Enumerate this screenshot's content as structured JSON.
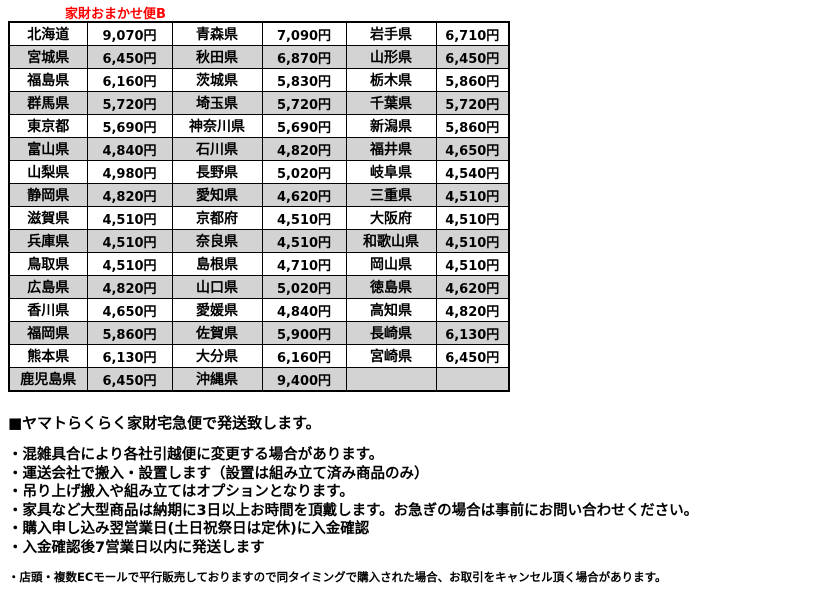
{
  "title": "家財おまかせ便B",
  "colors": {
    "accent_red": "#ff0000",
    "row_shade": "#d3d3d3",
    "border": "#000000"
  },
  "table": {
    "rows": [
      {
        "shaded": false,
        "cells": [
          "北海道",
          "9,070円",
          "青森県",
          "7,090円",
          "岩手県",
          "6,710円"
        ]
      },
      {
        "shaded": true,
        "cells": [
          "宮城県",
          "6,450円",
          "秋田県",
          "6,870円",
          "山形県",
          "6,450円"
        ]
      },
      {
        "shaded": false,
        "cells": [
          "福島県",
          "6,160円",
          "茨城県",
          "5,830円",
          "栃木県",
          "5,860円"
        ]
      },
      {
        "shaded": true,
        "cells": [
          "群馬県",
          "5,720円",
          "埼玉県",
          "5,720円",
          "千葉県",
          "5,720円"
        ]
      },
      {
        "shaded": false,
        "cells": [
          "東京都",
          "5,690円",
          "神奈川県",
          "5,690円",
          "新潟県",
          "5,860円"
        ]
      },
      {
        "shaded": true,
        "cells": [
          "富山県",
          "4,840円",
          "石川県",
          "4,820円",
          "福井県",
          "4,650円"
        ]
      },
      {
        "shaded": false,
        "cells": [
          "山梨県",
          "4,980円",
          "長野県",
          "5,020円",
          "岐阜県",
          "4,540円"
        ]
      },
      {
        "shaded": true,
        "cells": [
          "静岡県",
          "4,820円",
          "愛知県",
          "4,620円",
          "三重県",
          "4,510円"
        ]
      },
      {
        "shaded": false,
        "cells": [
          "滋賀県",
          "4,510円",
          "京都府",
          "4,510円",
          "大阪府",
          "4,510円"
        ]
      },
      {
        "shaded": true,
        "cells": [
          "兵庫県",
          "4,510円",
          "奈良県",
          "4,510円",
          "和歌山県",
          "4,510円"
        ]
      },
      {
        "shaded": false,
        "cells": [
          "鳥取県",
          "4,510円",
          "島根県",
          "4,710円",
          "岡山県",
          "4,510円"
        ]
      },
      {
        "shaded": true,
        "cells": [
          "広島県",
          "4,820円",
          "山口県",
          "5,020円",
          "徳島県",
          "4,620円"
        ]
      },
      {
        "shaded": false,
        "cells": [
          "香川県",
          "4,650円",
          "愛媛県",
          "4,840円",
          "高知県",
          "4,820円"
        ]
      },
      {
        "shaded": true,
        "cells": [
          "福岡県",
          "5,860円",
          "佐賀県",
          "5,900円",
          "長崎県",
          "6,130円"
        ]
      },
      {
        "shaded": false,
        "cells": [
          "熊本県",
          "6,130円",
          "大分県",
          "6,160円",
          "宮崎県",
          "6,450円"
        ]
      },
      {
        "shaded": true,
        "cells": [
          "鹿児島県",
          "6,450円",
          "沖縄県",
          "9,400円",
          "",
          ""
        ]
      }
    ]
  },
  "notes": {
    "heading": "■ヤマトらくらく家財宅急便で発送致します。",
    "bullets": [
      "・混雑具合により各社引越便に変更する場合があります。",
      "・運送会社で搬入・設置します（設置は組み立て済み商品のみ）",
      "・吊り上げ搬入や組み立てはオプションとなります。",
      "・家具など大型商品は納期に3日以上お時間を頂戴します。お急ぎの場合は事前にお問い合わせください。",
      "・購入申し込み翌営業日(土日祝祭日は定休)に入金確認",
      "・入金確認後7営業日以内に発送します"
    ],
    "footnote": "・店頭・複数ECモールで平行販売しておりますので同タイミングで購入された場合、お取引をキャンセル頂く場合があります。"
  }
}
